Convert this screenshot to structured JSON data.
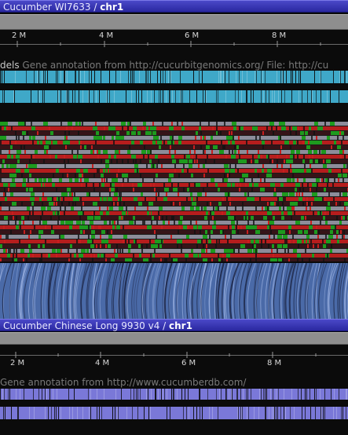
{
  "panels": [
    {
      "genome": "Cucumber WI7633",
      "separator": " / ",
      "chromosome": "chr1",
      "ticks": [
        "2 M",
        "4 M",
        "6 M",
        "8 M"
      ],
      "track_name": "dels",
      "track_desc": " Gene annotation from http://cucurbitgenomics.org/ File: http://cu",
      "gene_color": "#3fa8c8"
    },
    {
      "genome": "Cucumber Chinese Long 9930 v4",
      "separator": " / ",
      "chromosome": "chr1",
      "ticks": [
        "2 M",
        "4 M",
        "6 M",
        "8 M"
      ],
      "track_name": "",
      "track_desc": "Gene annotation from http://www.cucumberdb.com/",
      "gene_color": "#7a78d8"
    }
  ],
  "colors": {
    "variant_red": "#c81e1e",
    "variant_green": "#1e9a1e",
    "variant_gray": "#9a9aa8",
    "alignment_blue": "#4a6aa8"
  }
}
